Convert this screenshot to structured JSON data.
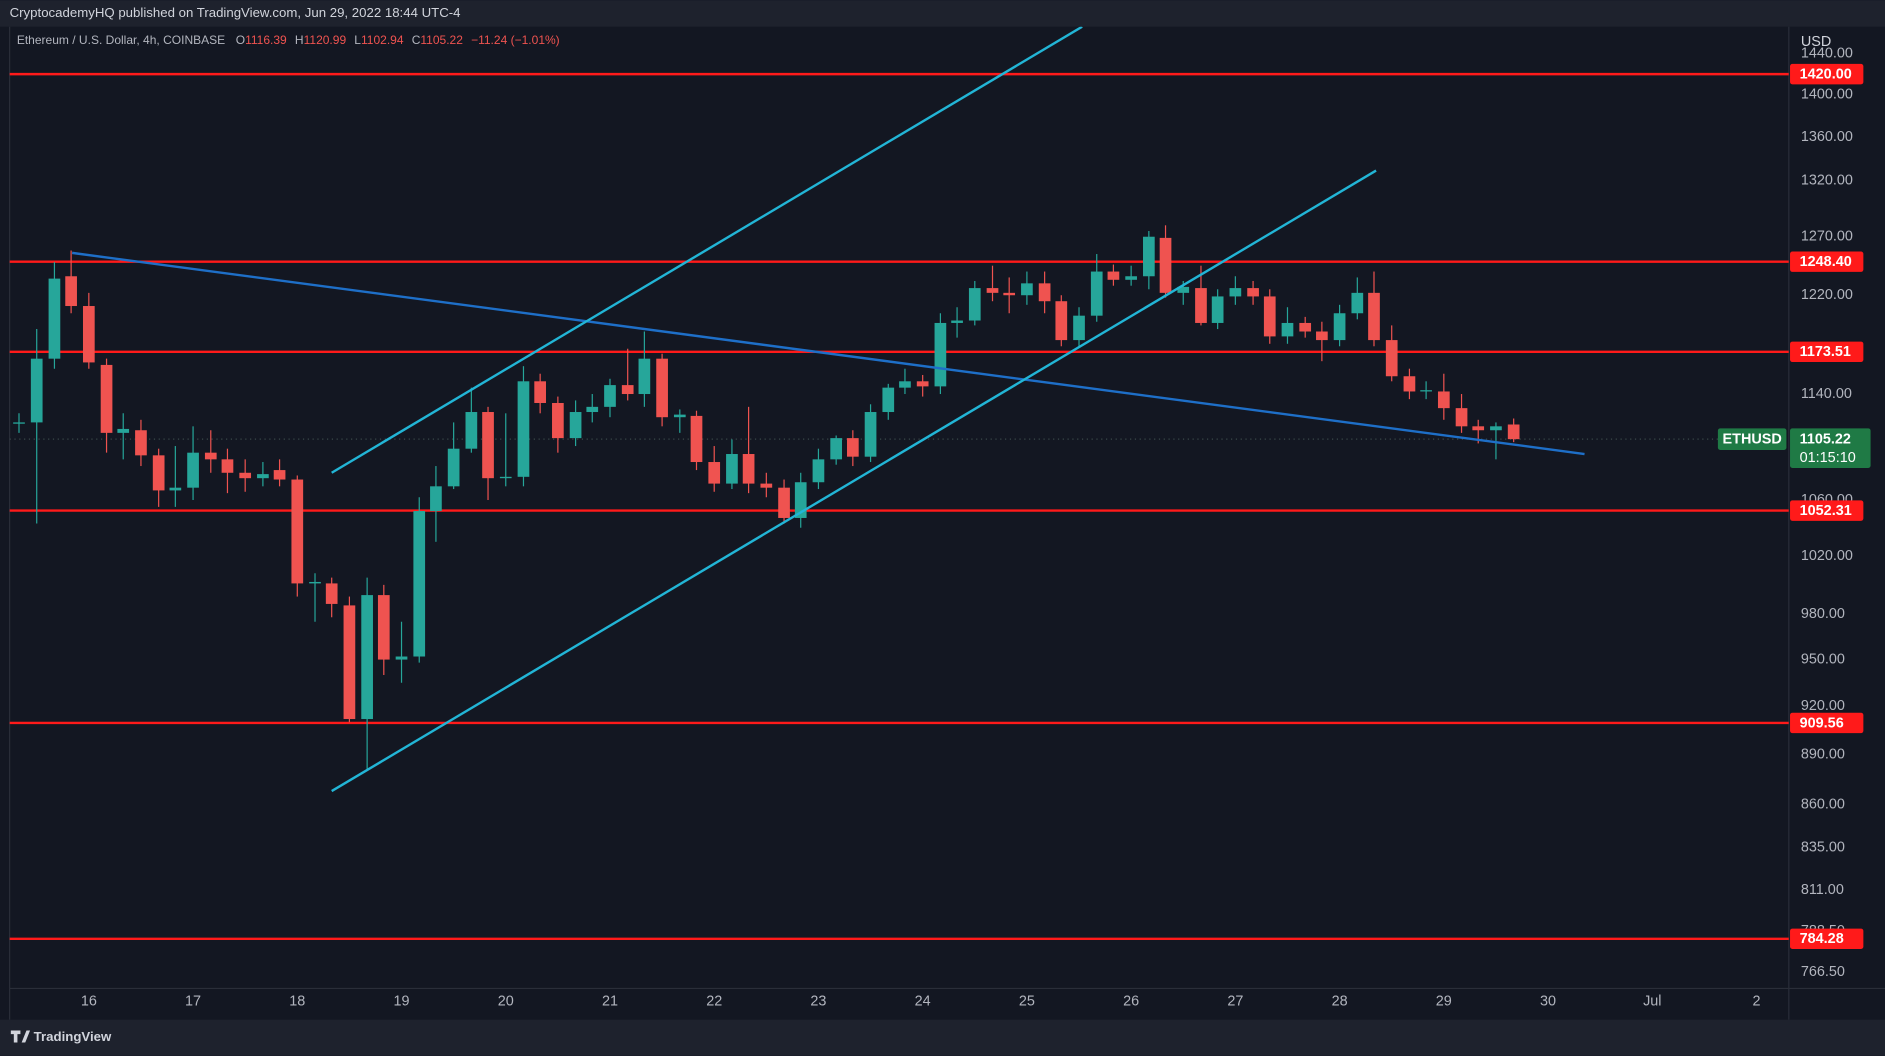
{
  "chart_data": {
    "type": "candlestick",
    "header": "CryptocademyHQ published on TradingView.com, Jun 29, 2022 18:44 UTC-4",
    "title": "Ethereum / U.S. Dollar, 4h, COINBASE",
    "ohlc": [
      {
        "key": "O",
        "value": 1116.39
      },
      {
        "key": "H",
        "value": 1120.99
      },
      {
        "key": "L",
        "value": 1102.94
      },
      {
        "key": "C",
        "value": 1105.22
      }
    ],
    "change": "−11.24 (−1.01%)",
    "currency": "USD",
    "brand": "TradingView",
    "log_scale": true,
    "grid": false,
    "up_color": "#26a69a",
    "down_color": "#ef5350",
    "x": [
      15.33,
      15.5,
      15.67,
      15.83,
      16,
      16.17,
      16.33,
      16.5,
      16.67,
      16.83,
      17,
      17.17,
      17.33,
      17.5,
      17.67,
      17.83,
      18,
      18.17,
      18.33,
      18.5,
      18.67,
      18.83,
      19,
      19.17,
      19.33,
      19.5,
      19.67,
      19.83,
      20,
      20.17,
      20.33,
      20.5,
      20.67,
      20.83,
      21,
      21.17,
      21.33,
      21.5,
      21.67,
      21.83,
      22,
      22.17,
      22.33,
      22.5,
      22.67,
      22.83,
      23,
      23.17,
      23.33,
      23.5,
      23.67,
      23.83,
      24,
      24.17,
      24.33,
      24.5,
      24.67,
      24.83,
      25,
      25.17,
      25.33,
      25.5,
      25.67,
      25.83,
      26,
      26.17,
      26.33,
      26.5,
      26.67,
      26.83,
      27,
      27.17,
      27.33,
      27.5,
      27.67,
      27.83,
      28,
      28.17,
      28.33,
      28.5,
      28.67,
      28.83,
      29,
      29.17,
      29.33,
      29.5,
      29.67
    ],
    "open": [
      1117,
      1118,
      1168,
      1236,
      1211,
      1163,
      1110,
      1112,
      1093,
      1067,
      1069,
      1095,
      1090,
      1080,
      1076,
      1082,
      1075,
      1001,
      1001,
      986,
      912,
      993,
      950,
      952,
      1052,
      1070,
      1098,
      1126,
      1076,
      1077,
      1150,
      1133,
      1106,
      1126,
      1130,
      1147,
      1140,
      1168,
      1122,
      1123,
      1088,
      1072,
      1094,
      1072,
      1069,
      1047,
      1073,
      1090,
      1106,
      1092,
      1126,
      1145,
      1150,
      1146,
      1197,
      1199,
      1226,
      1222,
      1220,
      1230,
      1215,
      1183,
      1203,
      1240,
      1233,
      1236,
      1269,
      1222,
      1226,
      1197,
      1219,
      1226,
      1219,
      1186,
      1197,
      1190,
      1183,
      1205,
      1222,
      1183,
      1154,
      1142,
      1142,
      1129,
      1115,
      1112,
      1116.39
    ],
    "high": [
      1125,
      1192,
      1248,
      1258,
      1222,
      1168,
      1125,
      1120,
      1098,
      1100,
      1115,
      1112,
      1098,
      1090,
      1088,
      1090,
      1078,
      1008,
      1005,
      992,
      1005,
      1000,
      975,
      1062,
      1085,
      1118,
      1145,
      1130,
      1125,
      1162,
      1156,
      1138,
      1135,
      1140,
      1152,
      1176,
      1190,
      1172,
      1128,
      1127,
      1100,
      1105,
      1130,
      1080,
      1075,
      1080,
      1098,
      1108,
      1112,
      1132,
      1148,
      1160,
      1155,
      1205,
      1210,
      1232,
      1245,
      1235,
      1240,
      1240,
      1220,
      1210,
      1255,
      1246,
      1245,
      1275,
      1280,
      1232,
      1245,
      1225,
      1236,
      1232,
      1225,
      1210,
      1202,
      1198,
      1212,
      1235,
      1240,
      1195,
      1160,
      1150,
      1156,
      1140,
      1120,
      1118,
      1120.99
    ],
    "low": [
      1110,
      1043,
      1160,
      1205,
      1160,
      1095,
      1090,
      1085,
      1055,
      1055,
      1060,
      1080,
      1065,
      1066,
      1070,
      1070,
      992,
      975,
      978,
      910,
      880,
      940,
      935,
      948,
      1030,
      1068,
      1095,
      1060,
      1070,
      1070,
      1125,
      1095,
      1100,
      1118,
      1122,
      1135,
      1130,
      1115,
      1110,
      1082,
      1066,
      1068,
      1065,
      1062,
      1043,
      1040,
      1068,
      1086,
      1085,
      1088,
      1120,
      1140,
      1138,
      1140,
      1185,
      1195,
      1215,
      1205,
      1212,
      1205,
      1178,
      1178,
      1198,
      1228,
      1228,
      1225,
      1218,
      1212,
      1195,
      1192,
      1212,
      1212,
      1180,
      1180,
      1185,
      1166,
      1178,
      1200,
      1178,
      1150,
      1136,
      1136,
      1120,
      1110,
      1102,
      1090,
      1102.94
    ],
    "close": [
      1118,
      1168,
      1234,
      1211,
      1165,
      1110,
      1113,
      1093,
      1067,
      1069,
      1095,
      1090,
      1080,
      1076,
      1079,
      1075,
      1001,
      1002,
      987,
      912,
      993,
      950,
      952,
      1052,
      1070,
      1098,
      1126,
      1076,
      1077,
      1150,
      1133,
      1106,
      1126,
      1130,
      1147,
      1140,
      1168,
      1122,
      1124,
      1088,
      1072,
      1094,
      1072,
      1069,
      1047,
      1073,
      1090,
      1106,
      1092,
      1126,
      1145,
      1150,
      1146,
      1197,
      1199,
      1226,
      1222,
      1220,
      1230,
      1215,
      1183,
      1203,
      1240,
      1233,
      1236,
      1270,
      1222,
      1227,
      1197,
      1219,
      1226,
      1219,
      1186,
      1197,
      1190,
      1183,
      1205,
      1222,
      1183,
      1154,
      1142,
      1143,
      1129,
      1115,
      1112,
      1115,
      1105.22
    ],
    "xlim": [
      15.24,
      32.31
    ],
    "xticks": [
      16,
      17,
      18,
      19,
      20,
      21,
      22,
      23,
      24,
      25,
      26,
      27,
      28,
      29,
      30,
      {
        "value": 31,
        "label": "Jul"
      },
      {
        "value": 32,
        "label": "2"
      }
    ],
    "ylim": [
      758,
      1467
    ],
    "yticks": [
      {
        "value": 1440,
        "label": "1440.00"
      },
      {
        "value": 1400,
        "label": "1400.00"
      },
      {
        "value": 1360,
        "label": "1360.00"
      },
      {
        "value": 1320,
        "label": "1320.00"
      },
      {
        "value": 1270,
        "label": "1270.00"
      },
      {
        "value": 1220,
        "label": "1220.00"
      },
      {
        "value": 1140,
        "label": "1140.00"
      },
      {
        "value": 1060,
        "label": "1060.00"
      },
      {
        "value": 1020,
        "label": "1020.00"
      },
      {
        "value": 980,
        "label": "980.00"
      },
      {
        "value": 950,
        "label": "950.00"
      },
      {
        "value": 920,
        "label": "920.00"
      },
      {
        "value": 890,
        "label": "890.00"
      },
      {
        "value": 860,
        "label": "860.00"
      },
      {
        "value": 835,
        "label": "835.00"
      },
      {
        "value": 811,
        "label": "811.00"
      },
      {
        "value": 788.5,
        "label": "788.50"
      },
      {
        "value": 766.5,
        "label": "766.50"
      }
    ],
    "levels": [
      {
        "value": 1420,
        "label": "1420.00"
      },
      {
        "value": 1248.4,
        "label": "1248.40"
      },
      {
        "value": 1173.51,
        "label": "1173.51"
      },
      {
        "value": 1052.31,
        "label": "1052.31"
      },
      {
        "value": 909.56,
        "label": "909.56"
      },
      {
        "value": 784.28,
        "label": "784.28"
      }
    ],
    "level_color": "#ff1a1a",
    "trendlines": [
      {
        "color": "#1e6fc8",
        "points": [
          [
            15.84,
            1256
          ],
          [
            30.35,
            1094
          ]
        ]
      },
      {
        "color": "#22b5d6",
        "points": [
          [
            18.33,
            1080
          ],
          [
            25.53,
            1467
          ]
        ]
      },
      {
        "color": "#22b5d6",
        "points": [
          [
            18.33,
            868
          ],
          [
            28.35,
            1329
          ]
        ]
      }
    ],
    "last_price": {
      "name": "ETHUSD",
      "value": 1105.22,
      "countdown": "01:15:10",
      "color": "#1f7a45"
    }
  }
}
